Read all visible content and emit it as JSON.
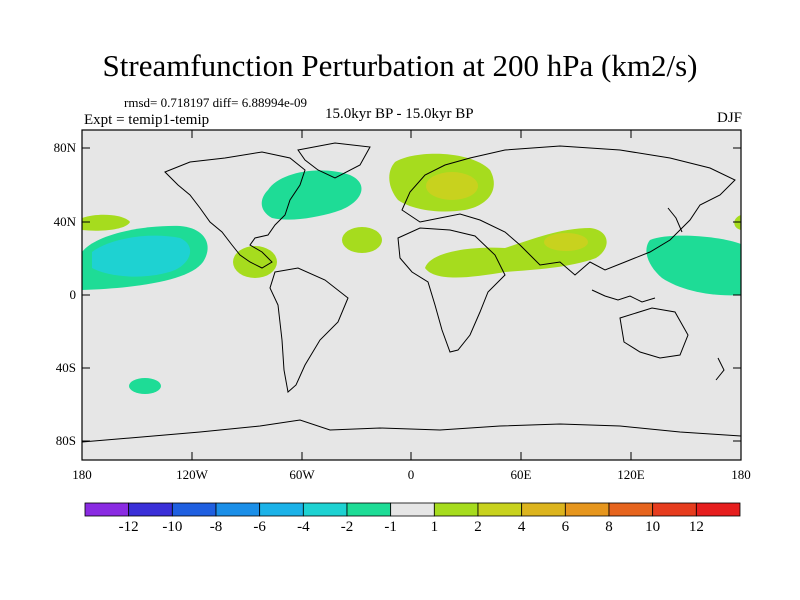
{
  "title": "Streamfunction Perturbation at 200 hPa (km2/s)",
  "stats": "rmsd= 0.718197 diff= 6.88994e-09",
  "experiment": "Expt = temip1-temip",
  "period": "15.0kyr BP - 15.0kyr BP",
  "season": "DJF",
  "lat_ticks": [
    "80N",
    "40N",
    "0",
    "40S",
    "80S"
  ],
  "lon_ticks": [
    "180",
    "120W",
    "60W",
    "0",
    "60E",
    "120E",
    "180"
  ],
  "colorbar": {
    "labels": [
      "-12",
      "-10",
      "-8",
      "-6",
      "-4",
      "-2",
      "-1",
      "1",
      "2",
      "4",
      "6",
      "8",
      "10",
      "12"
    ],
    "colors": [
      "#8a2be2",
      "#3a2fd8",
      "#1f5fe0",
      "#1b8fe8",
      "#1bb2e8",
      "#1ed2d2",
      "#1edc96",
      "#e6e6e6",
      "#a6dc1e",
      "#c8d21e",
      "#dcb41e",
      "#e6961e",
      "#e6641e",
      "#e63c1e",
      "#e61e1e"
    ]
  },
  "chart_data": {
    "type": "heatmap",
    "field": "streamfunction perturbation",
    "units": "km2/s",
    "lon_range": [
      -180,
      180
    ],
    "lat_range": [
      -90,
      90
    ],
    "anomalies": [
      {
        "region": "central North Pacific",
        "lon": -150,
        "lat": 17,
        "level": "-4"
      },
      {
        "region": "eastern North Pacific",
        "lon": -130,
        "lat": 20,
        "level": "-2"
      },
      {
        "region": "western North Atlantic",
        "lon": -65,
        "lat": 48,
        "level": "-2"
      },
      {
        "region": "western North Pacific",
        "lon": 150,
        "lat": 18,
        "level": "-2"
      },
      {
        "region": "South Pacific",
        "lon": -140,
        "lat": -50,
        "level": "-2"
      },
      {
        "region": "Europe",
        "lon": 20,
        "lat": 58,
        "level": "4"
      },
      {
        "region": "South Asia",
        "lon": 85,
        "lat": 28,
        "level": "4"
      },
      {
        "region": "North Africa",
        "lon": 40,
        "lat": 17,
        "level": "2"
      },
      {
        "region": "Caribbean",
        "lon": -85,
        "lat": 18,
        "level": "2"
      },
      {
        "region": "central Atlantic",
        "lon": -30,
        "lat": 30,
        "level": "2"
      },
      {
        "region": "mid-latitude Pacific",
        "lon": -165,
        "lat": 42,
        "level": "2"
      }
    ]
  }
}
